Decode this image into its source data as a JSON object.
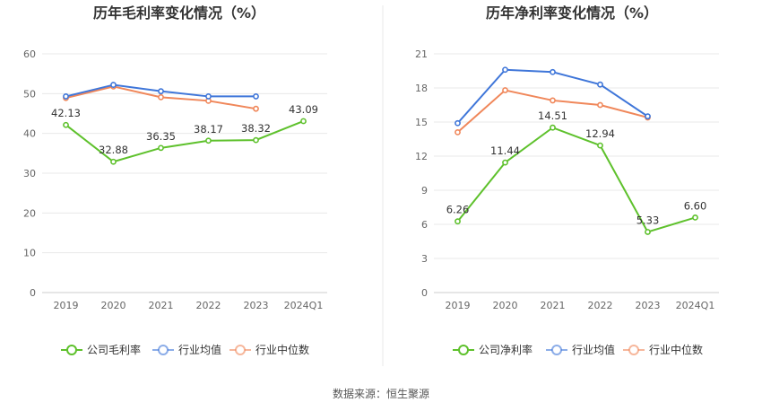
{
  "source": "数据来源：恒生聚源",
  "chart_data": [
    {
      "type": "line",
      "title": "历年毛利率变化情况（%）",
      "categories": [
        "2019",
        "2020",
        "2021",
        "2022",
        "2023",
        "2024Q1"
      ],
      "ylim": [
        0,
        60
      ],
      "yticks": [
        0,
        10,
        20,
        30,
        40,
        50,
        60
      ],
      "grid": true,
      "legend_position": "bottom",
      "series": [
        {
          "name": "公司毛利率",
          "color": "#5ec12c",
          "values": [
            42.13,
            32.88,
            36.35,
            38.17,
            38.32,
            43.09
          ],
          "labels": [
            "42.13",
            "32.88",
            "36.35",
            "38.17",
            "38.32",
            "43.09"
          ]
        },
        {
          "name": "行业均值",
          "color": "#3f76d9",
          "values": [
            49.3,
            52.2,
            50.6,
            49.3,
            49.3,
            null
          ]
        },
        {
          "name": "行业中位数",
          "color": "#f0875a",
          "values": [
            48.9,
            51.8,
            49.1,
            48.2,
            46.2,
            null
          ]
        }
      ]
    },
    {
      "type": "line",
      "title": "历年净利率变化情况（%）",
      "categories": [
        "2019",
        "2020",
        "2021",
        "2022",
        "2023",
        "2024Q1"
      ],
      "ylim": [
        0,
        21
      ],
      "yticks": [
        0,
        3,
        6,
        9,
        12,
        15,
        18,
        21
      ],
      "grid": true,
      "legend_position": "bottom",
      "series": [
        {
          "name": "公司净利率",
          "color": "#5ec12c",
          "values": [
            6.26,
            11.44,
            14.51,
            12.94,
            5.33,
            6.6
          ],
          "labels": [
            "6.26",
            "11.44",
            "14.51",
            "12.94",
            "5.33",
            "6.60"
          ]
        },
        {
          "name": "行业均值",
          "color": "#3f76d9",
          "values": [
            14.9,
            19.6,
            19.4,
            18.3,
            15.5,
            null
          ]
        },
        {
          "name": "行业中位数",
          "color": "#f0875a",
          "values": [
            14.1,
            17.8,
            16.9,
            16.5,
            15.4,
            null
          ]
        }
      ]
    }
  ]
}
